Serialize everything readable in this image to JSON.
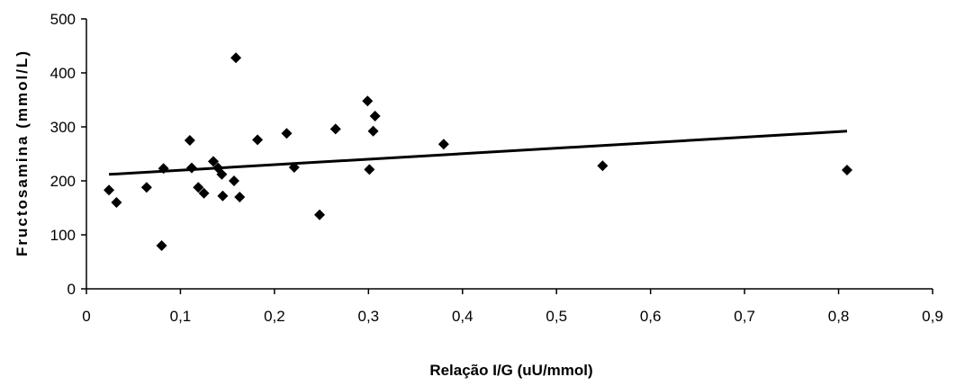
{
  "chart_data": {
    "type": "scatter",
    "title": "",
    "xlabel": "Relação I/G (uU/mmol)",
    "ylabel": "Fructosamina (mmol/L)",
    "xlim": [
      0,
      0.9
    ],
    "ylim": [
      0,
      500
    ],
    "x_ticks": [
      "0",
      "0,1",
      "0,2",
      "0,3",
      "0,4",
      "0,5",
      "0,6",
      "0,7",
      "0,8",
      "0,9"
    ],
    "y_ticks": [
      "0",
      "100",
      "200",
      "300",
      "400",
      "500"
    ],
    "grid": false,
    "legend": "none",
    "marker": "diamond",
    "colors": {
      "marker": "#000000",
      "line": "#000000",
      "axis": "#000000"
    },
    "points": [
      {
        "x": 0.024,
        "y": 183
      },
      {
        "x": 0.032,
        "y": 160
      },
      {
        "x": 0.064,
        "y": 188
      },
      {
        "x": 0.08,
        "y": 80
      },
      {
        "x": 0.082,
        "y": 223
      },
      {
        "x": 0.11,
        "y": 275
      },
      {
        "x": 0.112,
        "y": 224
      },
      {
        "x": 0.119,
        "y": 188
      },
      {
        "x": 0.125,
        "y": 177
      },
      {
        "x": 0.135,
        "y": 236
      },
      {
        "x": 0.14,
        "y": 224
      },
      {
        "x": 0.144,
        "y": 212
      },
      {
        "x": 0.145,
        "y": 172
      },
      {
        "x": 0.157,
        "y": 200
      },
      {
        "x": 0.159,
        "y": 428
      },
      {
        "x": 0.163,
        "y": 170
      },
      {
        "x": 0.182,
        "y": 276
      },
      {
        "x": 0.213,
        "y": 288
      },
      {
        "x": 0.221,
        "y": 225
      },
      {
        "x": 0.248,
        "y": 137
      },
      {
        "x": 0.265,
        "y": 296
      },
      {
        "x": 0.299,
        "y": 348
      },
      {
        "x": 0.301,
        "y": 221
      },
      {
        "x": 0.305,
        "y": 292
      },
      {
        "x": 0.307,
        "y": 320
      },
      {
        "x": 0.38,
        "y": 268
      },
      {
        "x": 0.549,
        "y": 228
      },
      {
        "x": 0.809,
        "y": 220
      }
    ],
    "trendline": {
      "x": [
        0.024,
        0.809
      ],
      "y": [
        212,
        292
      ]
    }
  }
}
